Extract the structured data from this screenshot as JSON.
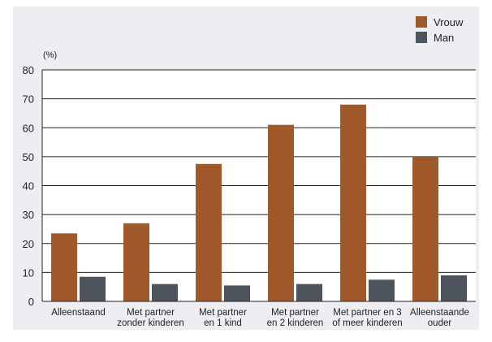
{
  "colors": {
    "vrouw": "#a0592a",
    "man": "#4d545d",
    "plot_background": "#ffffff",
    "panel_background": "#eeeef2",
    "gridline": "#222222"
  },
  "chart_data": {
    "type": "bar",
    "unit_label": "(%)",
    "categories": [
      [
        "Alleenstaand"
      ],
      [
        "Met partner",
        "zonder kinderen"
      ],
      [
        "Met partner",
        "en 1 kind"
      ],
      [
        "Met partner",
        "en 2 kinderen"
      ],
      [
        "Met partner en 3",
        "of meer kinderen"
      ],
      [
        "Alleenstaande",
        "ouder"
      ]
    ],
    "series": [
      {
        "name": "Vrouw",
        "values": [
          23.5,
          27,
          47.5,
          61,
          68,
          50
        ]
      },
      {
        "name": "Man",
        "values": [
          8.5,
          6,
          5.5,
          6,
          7.5,
          9
        ]
      }
    ],
    "ylim": [
      0,
      80
    ],
    "yticks": [
      0,
      10,
      20,
      30,
      40,
      50,
      60,
      70,
      80
    ],
    "grid": true,
    "legend_position": "top-right"
  }
}
